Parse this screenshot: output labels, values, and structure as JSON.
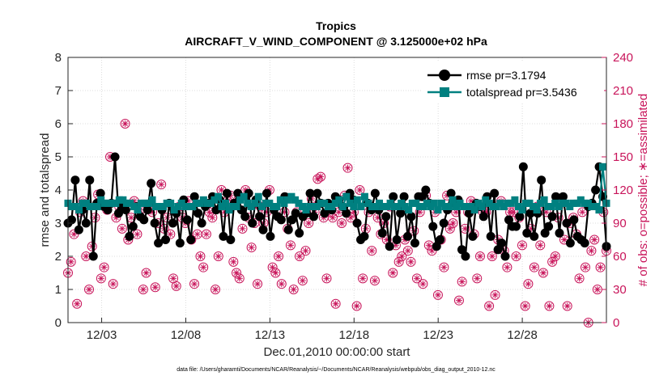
{
  "chart_data": {
    "type": "line",
    "title": "Tropics",
    "subtitle": "AIRCRAFT_V_WIND_COMPONENT @ 3.125000e+02 hPa",
    "xlabel": "Dec.01,2010 00:00:00 start",
    "ylabel": "rmse and totalspread",
    "ylabel_right": "# of obs: o=possible; ∗=assimilated",
    "x_range_days": [
      0,
      32
    ],
    "ylim": [
      0,
      8
    ],
    "ylim_right": [
      0,
      240
    ],
    "xtick_days": [
      2,
      7,
      12,
      17,
      22,
      27
    ],
    "xtick_labels": [
      "12/03",
      "12/08",
      "12/13",
      "12/18",
      "12/23",
      "12/28"
    ],
    "yticks": [
      0,
      1,
      2,
      3,
      4,
      5,
      6,
      7,
      8
    ],
    "yticks_right": [
      0,
      30,
      60,
      90,
      120,
      150,
      180,
      210,
      240
    ],
    "footnote": "data file: /Users/gharamti/Documents/NCAR/Reanalysis/~/Documents/NCAR/Reanalysis/webpub/obs_diag_output_2010-12.nc",
    "colors": {
      "rmse": "#000000",
      "spread": "#008080",
      "obs": "#c8145a"
    },
    "series": [
      {
        "name": "rmse",
        "label": "rmse pr=3.1794",
        "axis": "left",
        "values": [
          3.0,
          3.1,
          4.3,
          2.8,
          3.4,
          3.0,
          4.3,
          2.0,
          3.6,
          3.9,
          3.5,
          3.4,
          3.6,
          5.0,
          3.3,
          3.5,
          3.4,
          2.6,
          2.9,
          3.5,
          3.2,
          3.1,
          3.4,
          4.2,
          3.0,
          2.4,
          3.4,
          2.5,
          3.6,
          3.0,
          3.3,
          2.4,
          3.7,
          3.1,
          2.5,
          3.8,
          3.3,
          3.0,
          3.5,
          3.6,
          3.8,
          3.4,
          3.7,
          2.6,
          3.9,
          2.5,
          3.6,
          3.9,
          3.4,
          3.2,
          3.9,
          3.0,
          3.7,
          3.2,
          2.8,
          3.9,
          2.6,
          3.4,
          3.2,
          3.1,
          3.8,
          2.8,
          3.1,
          3.3,
          2.7,
          3.2,
          3.3,
          3.9,
          3.2,
          3.9,
          3.6,
          3.3,
          3.6,
          3.4,
          3.8,
          3.7,
          3.5,
          3.3,
          3.9,
          3.7,
          3.0,
          2.5,
          2.6,
          3.6,
          3.4,
          3.9,
          3.4,
          2.7,
          3.2,
          2.3,
          3.8,
          2.5,
          3.3,
          3.8,
          2.6,
          3.2,
          2.4,
          3.8,
          3.8,
          4.0,
          3.6,
          2.9,
          2.3,
          2.5,
          3.0,
          3.4,
          3.9,
          3.6,
          3.7,
          2.2,
          2.0,
          3.3,
          2.6,
          3.6,
          3.5,
          3.2,
          3.8,
          2.6,
          3.9,
          2.2,
          2.4,
          2.0,
          3.1,
          2.9,
          2.9,
          3.2,
          4.7,
          2.7,
          3.3,
          2.6,
          3.3,
          4.3,
          2.7,
          2.9,
          3.2,
          3.8,
          2.7,
          3.8,
          3.0,
          2.4,
          3.1,
          2.6,
          2.5,
          2.4,
          3.5,
          3.6,
          4.0,
          4.7,
          3.8,
          2.3
        ]
      },
      {
        "name": "totalspread",
        "label": "totalspread pr=3.5436",
        "axis": "left",
        "values": [
          3.6,
          3.5,
          3.5,
          3.4,
          3.6,
          3.6,
          3.5,
          3.5,
          3.5,
          3.7,
          3.6,
          3.6,
          3.6,
          3.6,
          3.7,
          3.7,
          3.6,
          3.6,
          3.5,
          3.4,
          3.6,
          3.6,
          3.6,
          3.7,
          3.5,
          3.5,
          3.5,
          3.6,
          3.6,
          3.4,
          3.5,
          3.6,
          3.5,
          3.5,
          3.5,
          3.6,
          3.6,
          3.7,
          3.6,
          3.6,
          3.7,
          3.8,
          3.5,
          3.6,
          3.4,
          3.5,
          3.5,
          3.7,
          3.8,
          3.6,
          3.5,
          3.6,
          3.8,
          3.5,
          3.6,
          3.6,
          3.5,
          3.5,
          3.7,
          3.6,
          3.7,
          3.8,
          3.7,
          3.6,
          3.5,
          3.4,
          3.5,
          3.5,
          3.5,
          3.6,
          3.6,
          3.5,
          3.5,
          3.6,
          3.7,
          3.5,
          3.8,
          3.6,
          3.5,
          3.7,
          3.5,
          3.8,
          3.6,
          3.5,
          3.5,
          3.6,
          3.5,
          3.5,
          3.6,
          3.5,
          3.5,
          3.6,
          3.5,
          3.4,
          3.6,
          3.6,
          3.5,
          3.5,
          3.6,
          3.5,
          3.6,
          3.4,
          3.6,
          3.5,
          3.5,
          3.7,
          3.5,
          3.6,
          3.5,
          3.5,
          3.5,
          3.4,
          3.6,
          3.5,
          3.7,
          3.6,
          3.5,
          3.5,
          3.6,
          3.5,
          3.6,
          3.6,
          3.7,
          3.5,
          3.4,
          3.6,
          3.6,
          3.5,
          3.4,
          3.6,
          3.7,
          3.5,
          3.5,
          3.6,
          3.5,
          3.6,
          3.6,
          3.5,
          3.6,
          3.6,
          3.7,
          3.6,
          3.6,
          3.5,
          3.5,
          3.4,
          4.7,
          3.6
        ]
      }
    ],
    "obs_counts_possible": [
      45,
      55,
      80,
      17,
      100,
      110,
      60,
      30,
      69,
      95,
      116,
      40,
      50,
      102,
      150,
      35,
      95,
      105,
      85,
      180,
      75,
      95,
      110,
      80,
      102,
      30,
      45,
      105,
      100,
      32,
      90,
      125,
      85,
      95,
      80,
      40,
      33,
      105,
      95,
      90,
      110,
      75,
      35,
      80,
      60,
      50,
      80,
      100,
      95,
      30,
      60,
      120,
      100,
      110,
      115,
      55,
      45,
      40,
      85,
      120,
      95,
      68,
      90,
      35,
      105,
      90,
      100,
      120,
      50,
      45,
      60,
      35,
      100,
      85,
      70,
      30,
      100,
      60,
      38,
      65,
      90,
      112,
      100,
      130,
      132,
      95,
      40,
      100,
      95,
      17,
      100,
      90,
      115,
      140,
      95,
      100,
      15,
      120,
      40,
      85,
      100,
      65,
      38,
      95,
      80,
      90,
      75,
      105,
      45,
      70,
      55,
      60,
      75,
      65,
      55,
      83,
      40,
      100,
      35,
      115,
      70,
      65,
      100,
      25,
      75,
      50,
      115,
      85,
      90,
      100,
      20,
      37,
      85,
      100,
      110,
      80,
      40,
      60,
      100,
      100,
      15,
      60,
      25,
      75,
      110,
      65,
      50,
      100,
      100,
      60,
      95,
      70,
      15,
      35,
      85,
      50,
      105,
      70,
      45,
      100,
      15,
      55,
      60,
      95,
      110,
      75,
      15,
      90,
      95,
      80,
      40,
      100,
      50,
      0,
      65,
      75,
      30,
      50,
      100,
      65
    ]
  }
}
